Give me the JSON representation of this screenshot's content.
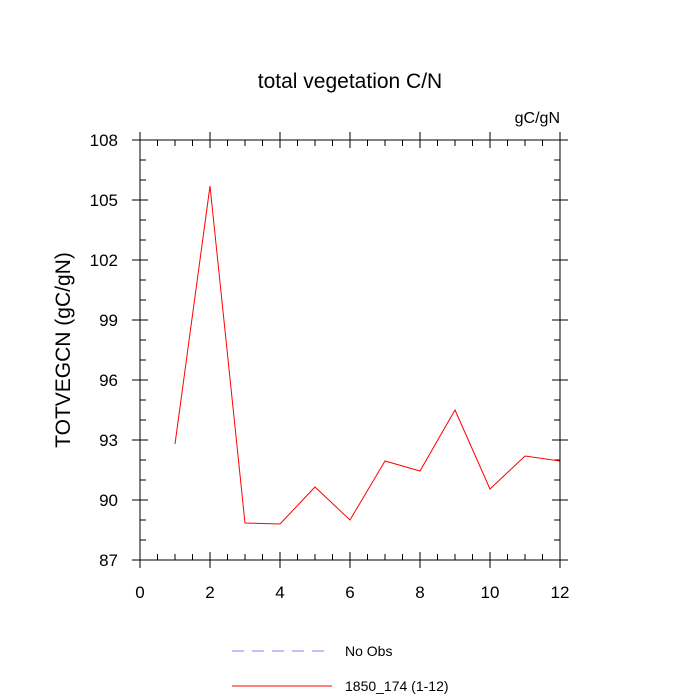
{
  "chart_data": {
    "type": "line",
    "title": "total vegetation C/N",
    "units_label": "gC/gN",
    "ylabel": "TOTVEGCN  (gC/gN)",
    "xlabel": "",
    "xlim": [
      0,
      12
    ],
    "ylim": [
      87,
      108
    ],
    "x_ticks": [
      0,
      2,
      4,
      6,
      8,
      10,
      12
    ],
    "y_ticks": [
      87,
      90,
      93,
      96,
      99,
      102,
      105,
      108
    ],
    "x_minor_step": 0.5,
    "y_minor_step": 1,
    "grid": false,
    "legend_position": "bottom-center",
    "series": [
      {
        "name": "No Obs",
        "color": "#8080ff",
        "dash": "dashed",
        "x": [],
        "values": []
      },
      {
        "name": "1850_174 (1-12)",
        "color": "#ff0000",
        "dash": "solid",
        "x": [
          1,
          2,
          3,
          4,
          5,
          6,
          7,
          8,
          9,
          10,
          11,
          12
        ],
        "values": [
          92.8,
          105.7,
          88.85,
          88.8,
          90.65,
          89.0,
          91.95,
          91.45,
          94.5,
          90.55,
          92.2,
          91.95
        ]
      }
    ]
  }
}
